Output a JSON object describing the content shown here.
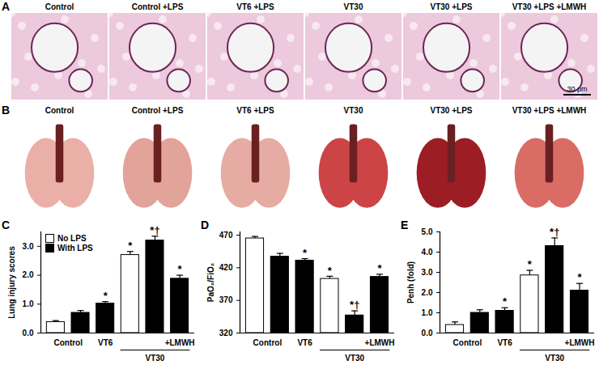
{
  "panels": [
    {
      "label": "A",
      "titles": [
        "Control",
        "Control +LPS",
        "VT6 +LPS",
        "VT30",
        "VT30 +LPS",
        "VT30 +LPS +LMWH"
      ],
      "scale_bar": "30 μm"
    },
    {
      "label": "B",
      "titles": [
        "Control",
        "Control +LPS",
        "VT6 +LPS",
        "VT30",
        "VT30 +LPS",
        "VT30 +LPS +LMWH"
      ]
    }
  ],
  "chart_data": [
    {
      "type": "bar",
      "title": "C",
      "y_label": "Lung injury scores",
      "ylim": [
        0,
        3.5
      ],
      "yticks": [
        0,
        1,
        2,
        3
      ],
      "legend": "top-left",
      "categories": [
        null,
        null,
        null,
        null,
        null,
        null
      ],
      "groups": [
        {
          "label": "Control",
          "first": 0,
          "last": 1
        },
        {
          "label": "VT6",
          "first": 2,
          "last": 2
        },
        {
          "label": "VT30",
          "first": 3,
          "last": 5
        }
      ],
      "annotations": [
        {
          "text": "+LMWH",
          "at": 5
        }
      ],
      "series": [
        {
          "name": "No LPS",
          "color": "#ffffff",
          "values": [
            0.38,
            null,
            null,
            2.7,
            null,
            null
          ],
          "errors": [
            0.05,
            null,
            null,
            0.12,
            null,
            null
          ]
        },
        {
          "name": "With LPS",
          "color": "#000000",
          "values": [
            null,
            0.7,
            1.02,
            null,
            3.2,
            1.88
          ],
          "errors": [
            null,
            0.08,
            0.07,
            null,
            0.15,
            0.12
          ]
        }
      ],
      "significance": [
        null,
        null,
        "*",
        "*",
        "*†",
        "*"
      ]
    },
    {
      "type": "bar",
      "title": "D",
      "y_label": "PaO₂/FiO₂",
      "ylim": [
        320,
        475
      ],
      "yticks": [
        320,
        370,
        420,
        470
      ],
      "categories": [
        null,
        null,
        null,
        null,
        null,
        null
      ],
      "groups": [
        {
          "label": "Control",
          "first": 0,
          "last": 1
        },
        {
          "label": "VT6",
          "first": 2,
          "last": 2
        },
        {
          "label": "VT30",
          "first": 3,
          "last": 5
        }
      ],
      "annotations": [
        {
          "text": "+LMWH",
          "at": 5
        }
      ],
      "series": [
        {
          "name": "No LPS",
          "color": "#ffffff",
          "values": [
            465,
            null,
            null,
            403,
            null,
            null
          ],
          "errors": [
            3,
            null,
            null,
            4,
            null,
            null
          ]
        },
        {
          "name": "With LPS",
          "color": "#000000",
          "values": [
            null,
            437,
            431,
            null,
            347,
            406
          ],
          "errors": [
            null,
            5,
            3,
            null,
            7,
            4
          ]
        }
      ],
      "significance": [
        null,
        null,
        "*",
        "*",
        "*†",
        "*"
      ]
    },
    {
      "type": "bar",
      "title": "E",
      "y_label": "Penh (fold)",
      "ylim": [
        0,
        5
      ],
      "yticks": [
        0,
        1,
        2,
        3,
        4,
        5
      ],
      "categories": [
        null,
        null,
        null,
        null,
        null,
        null
      ],
      "groups": [
        {
          "label": "Control",
          "first": 0,
          "last": 1
        },
        {
          "label": "VT6",
          "first": 2,
          "last": 2
        },
        {
          "label": "VT30",
          "first": 3,
          "last": 5
        }
      ],
      "annotations": [
        {
          "text": "+LMWH",
          "at": 5
        }
      ],
      "series": [
        {
          "name": "No LPS",
          "color": "#ffffff",
          "values": [
            0.4,
            null,
            null,
            2.85,
            null,
            null
          ],
          "errors": [
            0.15,
            null,
            null,
            0.25,
            null,
            null
          ]
        },
        {
          "name": "With LPS",
          "color": "#000000",
          "values": [
            null,
            1.0,
            1.1,
            null,
            4.3,
            2.1
          ],
          "errors": [
            null,
            0.15,
            0.15,
            null,
            0.4,
            0.35
          ]
        }
      ],
      "significance": [
        null,
        null,
        "*",
        "*",
        "*†",
        "*"
      ]
    }
  ]
}
